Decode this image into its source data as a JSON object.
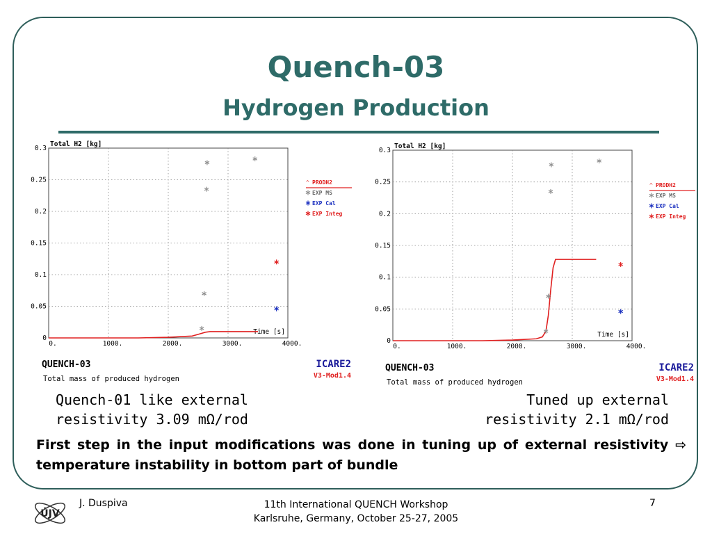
{
  "slide": {
    "title": "Quench-03",
    "subtitle": "Hydrogen Production",
    "note_part1": "First step in the input modifications was done in tuning up of external resistivity",
    "note_arrow": "⇨",
    "note_part2": "temperature instability in bottom part of bundle",
    "footer_left": "J. Duspiva",
    "footer_center_line1": "11th International QUENCH Workshop",
    "footer_center_line2": "Karlsruhe, Germany, October 25-27, 2005",
    "footer_page": "7",
    "logo_text": "ÚJV"
  },
  "colors": {
    "teal": "#2e6b68",
    "red": "#e02020",
    "blue": "#1a2fbf",
    "gray": "#909090",
    "navy": "#1a1a9a"
  },
  "captions": [
    {
      "line1": "Quench-01 like external",
      "line2": "resistivity 3.09 mΩ/rod"
    },
    {
      "line1": "Tuned up external",
      "line2": "resistivity 2.1 mΩ/rod"
    }
  ],
  "chart_data": [
    {
      "type": "scatter",
      "title": "Total H2 [kg]",
      "xlabel": "Time [s]",
      "x_ticks": [
        "0.",
        "1000.",
        "2000.",
        "3000.",
        "4000."
      ],
      "y_ticks": [
        "0",
        "0.05",
        "0.1",
        "0.15",
        "0.2",
        "0.25",
        "0.3"
      ],
      "xlim": [
        0,
        4000
      ],
      "ylim": [
        0,
        0.3
      ],
      "legend": [
        "PRODH2",
        "EXP MS",
        "EXP Cal",
        "EXP Integ"
      ],
      "legend_position": "right",
      "bottom_title": "QUENCH-03",
      "bottom_subtitle": "Total mass of produced hydrogen",
      "code_name": "ICARE2",
      "code_version": "V3-Mod1.4",
      "series": [
        {
          "name": "PRODH2",
          "type": "line",
          "x": [
            0,
            1500,
            2000,
            2400,
            2550,
            2620,
            2700,
            2800,
            3000,
            3500
          ],
          "y": [
            0,
            0,
            0.001,
            0.003,
            0.007,
            0.009,
            0.01,
            0.01,
            0.01,
            0.01
          ]
        },
        {
          "name": "EXP MS",
          "type": "scatter",
          "x": [
            2560,
            2600,
            2640,
            2650,
            3450
          ],
          "y": [
            0.015,
            0.07,
            0.235,
            0.277,
            0.283
          ]
        },
        {
          "name": "EXP Cal",
          "type": "scatter",
          "x": [
            3810
          ],
          "y": [
            0.046
          ]
        },
        {
          "name": "EXP Integ",
          "type": "scatter",
          "x": [
            3810
          ],
          "y": [
            0.12
          ]
        }
      ]
    },
    {
      "type": "scatter",
      "title": "Total H2 [kg]",
      "xlabel": "Time [s]",
      "x_ticks": [
        "0.",
        "1000.",
        "2000.",
        "3000.",
        "4000."
      ],
      "y_ticks": [
        "0",
        "0.05",
        "0.1",
        "0.15",
        "0.2",
        "0.25",
        "0.3"
      ],
      "xlim": [
        0,
        4000
      ],
      "ylim": [
        0,
        0.3
      ],
      "legend": [
        "PRODH2",
        "EXP MS",
        "EXP Cal",
        "EXP Integ"
      ],
      "legend_position": "right",
      "bottom_title": "QUENCH-03",
      "bottom_subtitle": "Total mass of produced hydrogen",
      "code_name": "ICARE2",
      "code_version": "V3-Mod1.4",
      "series": [
        {
          "name": "PRODH2",
          "type": "line",
          "x": [
            0,
            1500,
            2000,
            2400,
            2500,
            2560,
            2600,
            2640,
            2680,
            2720,
            2760,
            3000,
            3400
          ],
          "y": [
            0,
            0,
            0.001,
            0.003,
            0.006,
            0.015,
            0.04,
            0.08,
            0.115,
            0.128,
            0.128,
            0.128,
            0.128
          ]
        },
        {
          "name": "EXP MS",
          "type": "scatter",
          "x": [
            2560,
            2600,
            2640,
            2650,
            3450
          ],
          "y": [
            0.015,
            0.07,
            0.235,
            0.277,
            0.283
          ]
        },
        {
          "name": "EXP Cal",
          "type": "scatter",
          "x": [
            3810
          ],
          "y": [
            0.046
          ]
        },
        {
          "name": "EXP Integ",
          "type": "scatter",
          "x": [
            3810
          ],
          "y": [
            0.12
          ]
        }
      ]
    }
  ]
}
